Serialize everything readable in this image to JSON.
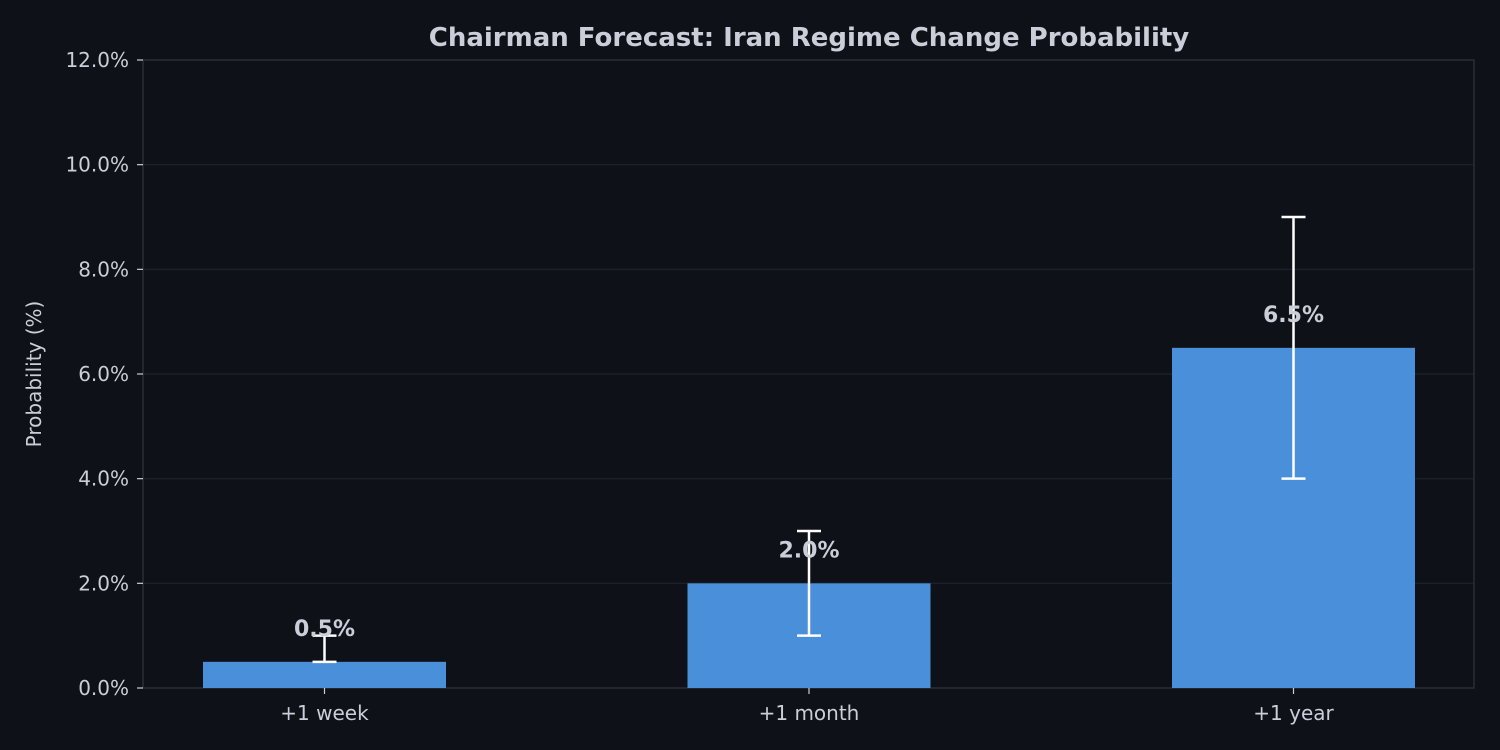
{
  "chart_data": {
    "type": "bar",
    "title": "Chairman Forecast: Iran Regime Change Probability",
    "xlabel": "",
    "ylabel": "Probability (%)",
    "ylim": [
      0,
      12
    ],
    "yticks": [
      "0.0%",
      "2.0%",
      "4.0%",
      "6.0%",
      "8.0%",
      "10.0%",
      "12.0%"
    ],
    "categories": [
      "+1 week",
      "+1 month",
      "+1 year"
    ],
    "values": [
      0.5,
      2.0,
      6.5
    ],
    "value_labels": [
      "0.5%",
      "2.0%",
      "6.5%"
    ],
    "error_bars": [
      {
        "low": 0.5,
        "high": 1.0
      },
      {
        "low": 1.0,
        "high": 3.0
      },
      {
        "low": 4.0,
        "high": 9.0
      }
    ],
    "grid": true,
    "legend": null
  },
  "colors": {
    "background": "#0e1117",
    "bar": "#4a8fd9",
    "text": "#c9ced8",
    "grid": "#1c2028",
    "axis": "#2a2e36",
    "errorbar": "#ffffff"
  }
}
